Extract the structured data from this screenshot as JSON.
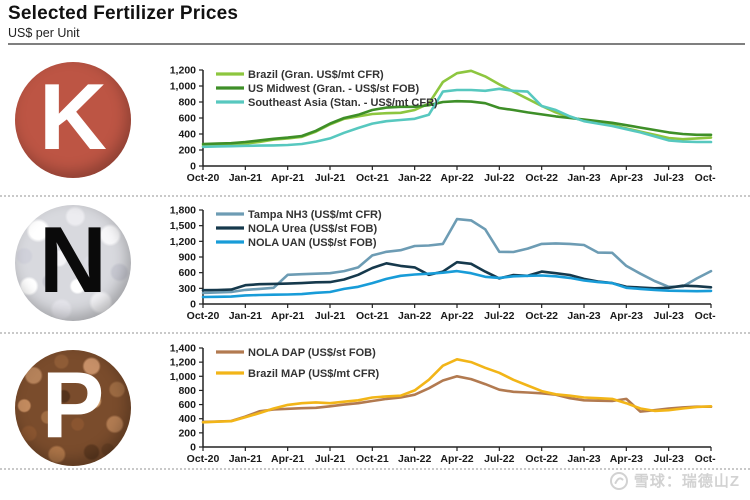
{
  "header": {
    "title": "Selected Fertilizer Prices",
    "subtitle": "US$ per Unit"
  },
  "sections": [
    {
      "letter": "K"
    },
    {
      "letter": "N"
    },
    {
      "letter": "P"
    }
  ],
  "watermark": {
    "text": "雪球：瑞德山Z"
  },
  "chart_data": [
    {
      "type": "line",
      "x": [
        "Oct-20",
        "Nov-20",
        "Dec-20",
        "Jan-21",
        "Feb-21",
        "Mar-21",
        "Apr-21",
        "May-21",
        "Jun-21",
        "Jul-21",
        "Aug-21",
        "Sep-21",
        "Oct-21",
        "Nov-21",
        "Dec-21",
        "Jan-22",
        "Feb-22",
        "Mar-22",
        "Apr-22",
        "May-22",
        "Jun-22",
        "Jul-22",
        "Aug-22",
        "Sep-22",
        "Oct-22",
        "Nov-22",
        "Dec-22",
        "Jan-23",
        "Feb-23",
        "Mar-23",
        "Apr-23",
        "May-23",
        "Jun-23",
        "Jul-23",
        "Aug-23",
        "Sep-23",
        "Oct-23"
      ],
      "x_tick_labels": [
        "Oct-20",
        "Jan-21",
        "Apr-21",
        "Jul-21",
        "Oct-21",
        "Jan-22",
        "Apr-22",
        "Jul-22",
        "Oct-22",
        "Jan-23",
        "Apr-23",
        "Jul-23",
        "Oct-23"
      ],
      "ylim": [
        0,
        1200
      ],
      "ytick_step": 200,
      "grid": false,
      "legend_position": "top-left-inside",
      "series": [
        {
          "name": "Brazil (Gran. US$/mt CFR)",
          "color": "#8dc63f",
          "values": [
            250,
            255,
            260,
            280,
            300,
            330,
            345,
            365,
            430,
            520,
            590,
            620,
            650,
            660,
            665,
            700,
            780,
            1050,
            1160,
            1190,
            1120,
            1020,
            930,
            840,
            750,
            670,
            610,
            570,
            540,
            510,
            470,
            430,
            390,
            350,
            335,
            345,
            355
          ]
        },
        {
          "name": "US Midwest (Gran. - US$/st FOB)",
          "color": "#3e8f28",
          "values": [
            275,
            280,
            285,
            300,
            320,
            340,
            355,
            375,
            440,
            530,
            600,
            640,
            700,
            730,
            740,
            740,
            760,
            800,
            810,
            805,
            785,
            725,
            700,
            670,
            645,
            620,
            600,
            580,
            560,
            540,
            510,
            480,
            450,
            420,
            400,
            390,
            390
          ]
        },
        {
          "name": "Southeast Asia (Stan. - US$/mt CFR)",
          "color": "#57c8bf",
          "values": [
            240,
            245,
            248,
            252,
            255,
            258,
            262,
            275,
            305,
            345,
            415,
            475,
            530,
            560,
            575,
            590,
            640,
            930,
            950,
            950,
            940,
            965,
            940,
            930,
            750,
            700,
            620,
            560,
            530,
            500,
            460,
            420,
            370,
            320,
            305,
            300,
            300
          ]
        }
      ]
    },
    {
      "type": "line",
      "x": [
        "Oct-20",
        "Nov-20",
        "Dec-20",
        "Jan-21",
        "Feb-21",
        "Mar-21",
        "Apr-21",
        "May-21",
        "Jun-21",
        "Jul-21",
        "Aug-21",
        "Sep-21",
        "Oct-21",
        "Nov-21",
        "Dec-21",
        "Jan-22",
        "Feb-22",
        "Mar-22",
        "Apr-22",
        "May-22",
        "Jun-22",
        "Jul-22",
        "Aug-22",
        "Sep-22",
        "Oct-22",
        "Nov-22",
        "Dec-22",
        "Jan-23",
        "Feb-23",
        "Mar-23",
        "Apr-23",
        "May-23",
        "Jun-23",
        "Jul-23",
        "Aug-23",
        "Sep-23",
        "Oct-23"
      ],
      "x_tick_labels": [
        "Oct-20",
        "Jan-21",
        "Apr-21",
        "Jul-21",
        "Oct-21",
        "Jan-22",
        "Apr-22",
        "Jul-22",
        "Oct-22",
        "Jan-23",
        "Apr-23",
        "Jul-23",
        "Oct-23"
      ],
      "ylim": [
        0,
        1800
      ],
      "ytick_step": 300,
      "grid": false,
      "legend_position": "top-left-inside",
      "series": [
        {
          "name": "Tampa NH3 (US$/mt CFR)",
          "color": "#6d9cb4",
          "values": [
            210,
            220,
            230,
            270,
            290,
            310,
            560,
            570,
            580,
            590,
            630,
            700,
            930,
            1000,
            1030,
            1110,
            1120,
            1150,
            1625,
            1600,
            1430,
            1000,
            995,
            1060,
            1150,
            1160,
            1150,
            1130,
            985,
            980,
            730,
            580,
            440,
            330,
            335,
            490,
            630
          ]
        },
        {
          "name": "NOLA Urea (US$/st FOB)",
          "color": "#16394c",
          "values": [
            265,
            268,
            275,
            360,
            380,
            385,
            390,
            400,
            415,
            420,
            470,
            560,
            690,
            780,
            730,
            700,
            560,
            620,
            800,
            770,
            620,
            490,
            555,
            540,
            620,
            590,
            555,
            480,
            430,
            400,
            330,
            315,
            300,
            310,
            350,
            340,
            320
          ]
        },
        {
          "name": "NOLA UAN (US$/st FOB)",
          "color": "#189cd8",
          "values": [
            135,
            138,
            142,
            165,
            172,
            178,
            182,
            190,
            215,
            230,
            290,
            330,
            400,
            480,
            540,
            565,
            580,
            600,
            630,
            590,
            520,
            500,
            530,
            540,
            545,
            530,
            500,
            450,
            420,
            400,
            310,
            290,
            270,
            255,
            250,
            245,
            250
          ]
        }
      ]
    },
    {
      "type": "line",
      "x": [
        "Oct-20",
        "Nov-20",
        "Dec-20",
        "Jan-21",
        "Feb-21",
        "Mar-21",
        "Apr-21",
        "May-21",
        "Jun-21",
        "Jul-21",
        "Aug-21",
        "Sep-21",
        "Oct-21",
        "Nov-21",
        "Dec-21",
        "Jan-22",
        "Feb-22",
        "Mar-22",
        "Apr-22",
        "May-22",
        "Jun-22",
        "Jul-22",
        "Aug-22",
        "Sep-22",
        "Oct-22",
        "Nov-22",
        "Dec-22",
        "Jan-23",
        "Feb-23",
        "Mar-23",
        "Apr-23",
        "May-23",
        "Jun-23",
        "Jul-23",
        "Aug-23",
        "Sep-23",
        "Oct-23"
      ],
      "x_tick_labels": [
        "Oct-20",
        "Jan-21",
        "Apr-21",
        "Jul-21",
        "Oct-21",
        "Jan-22",
        "Apr-22",
        "Jul-22",
        "Oct-22",
        "Jan-23",
        "Apr-23",
        "Jul-23",
        "Oct-23"
      ],
      "ylim": [
        0,
        1400
      ],
      "ytick_step": 200,
      "grid": false,
      "legend_position": "top-left-inside",
      "series": [
        {
          "name": "NOLA DAP (US$/st FOB)",
          "color": "#b27a50",
          "values": [
            355,
            360,
            368,
            430,
            505,
            530,
            540,
            548,
            555,
            575,
            600,
            620,
            650,
            680,
            700,
            740,
            830,
            940,
            1000,
            960,
            890,
            810,
            780,
            770,
            760,
            740,
            690,
            660,
            655,
            650,
            680,
            500,
            520,
            545,
            560,
            570,
            570
          ]
        },
        {
          "name": "Brazil MAP (US$/mt CFR)",
          "color": "#f2b518",
          "values": [
            350,
            358,
            365,
            420,
            480,
            545,
            595,
            620,
            630,
            620,
            640,
            660,
            700,
            715,
            725,
            800,
            950,
            1150,
            1240,
            1200,
            1120,
            1050,
            950,
            870,
            790,
            745,
            725,
            700,
            690,
            680,
            620,
            545,
            510,
            520,
            545,
            565,
            575
          ]
        }
      ]
    }
  ]
}
